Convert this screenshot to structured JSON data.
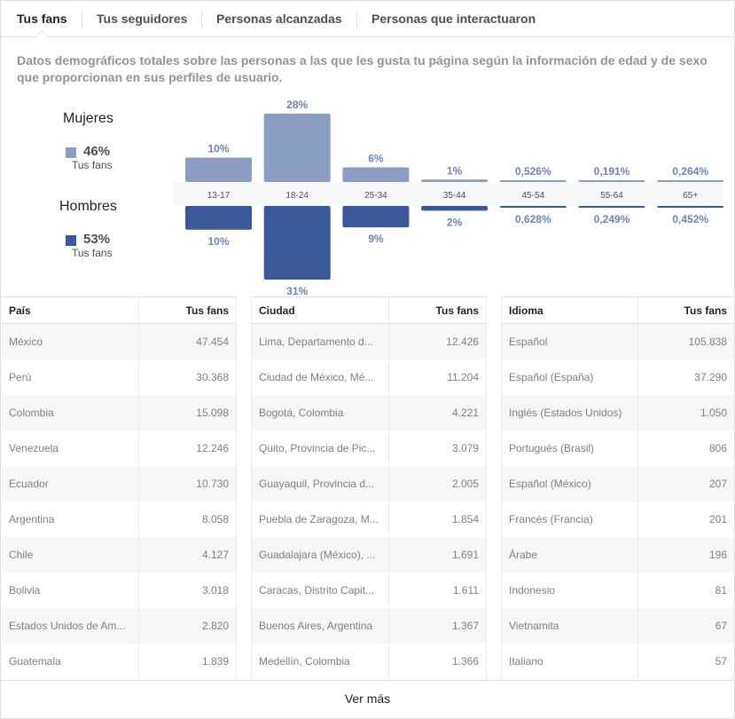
{
  "tabs": [
    {
      "label": "Tus fans",
      "active": true
    },
    {
      "label": "Tus seguidores",
      "active": false
    },
    {
      "label": "Personas alcanzadas",
      "active": false
    },
    {
      "label": "Personas que interactuaron",
      "active": false
    }
  ],
  "description": "Datos demográficos totales sobre las personas a las que les gusta tu página según la información de edad y de sexo que proporcionan en sus perfiles de usuario.",
  "legend": {
    "women": {
      "title": "Mujeres",
      "percent": "46%",
      "sub": "Tus fans",
      "color": "#8b9dc3"
    },
    "men": {
      "title": "Hombres",
      "percent": "53%",
      "sub": "Tus fans",
      "color": "#3b5998"
    }
  },
  "chart_data": {
    "type": "bar",
    "categories": [
      "13-17",
      "18-24",
      "25-34",
      "35-44",
      "45-54",
      "55-64",
      "65+"
    ],
    "series": [
      {
        "name": "Mujeres",
        "values": [
          10,
          28,
          6,
          1,
          0.526,
          0.191,
          0.264
        ],
        "labels": [
          "10%",
          "28%",
          "6%",
          "1%",
          "0,526%",
          "0,191%",
          "0,264%"
        ]
      },
      {
        "name": "Hombres",
        "values": [
          10,
          31,
          9,
          2,
          0.628,
          0.249,
          0.452
        ],
        "labels": [
          "10%",
          "31%",
          "9%",
          "2%",
          "0,628%",
          "0,249%",
          "0,452%"
        ]
      }
    ]
  },
  "tables": {
    "country": {
      "headers": [
        "País",
        "Tus fans"
      ],
      "rows": [
        [
          "México",
          "47.454"
        ],
        [
          "Perú",
          "30.368"
        ],
        [
          "Colombia",
          "15.098"
        ],
        [
          "Venezuela",
          "12.246"
        ],
        [
          "Ecuador",
          "10.730"
        ],
        [
          "Argentina",
          "8.058"
        ],
        [
          "Chile",
          "4.127"
        ],
        [
          "Bolivia",
          "3.018"
        ],
        [
          "Estados Unidos de Am...",
          "2.820"
        ],
        [
          "Guatemala",
          "1.839"
        ]
      ]
    },
    "city": {
      "headers": [
        "Ciudad",
        "Tus fans"
      ],
      "rows": [
        [
          "Lima, Departamento d...",
          "12.426"
        ],
        [
          "Ciudad de México, Mé...",
          "11.204"
        ],
        [
          "Bogotá, Colombia",
          "4.221"
        ],
        [
          "Quito, Provincia de Pic...",
          "3.079"
        ],
        [
          "Guayaquil, Provincia d...",
          "2.005"
        ],
        [
          "Puebla de Zaragoza, M...",
          "1.854"
        ],
        [
          "Guadalajara (México), ...",
          "1.691"
        ],
        [
          "Caracas, Distrito Capit...",
          "1.611"
        ],
        [
          "Buenos Aires, Argentina",
          "1.367"
        ],
        [
          "Medellín, Colombia",
          "1.366"
        ]
      ]
    },
    "language": {
      "headers": [
        "Idioma",
        "Tus fans"
      ],
      "rows": [
        [
          "Español",
          "105.838"
        ],
        [
          "Español (España)",
          "37.290"
        ],
        [
          "Inglés (Estados Unidos)",
          "1.050"
        ],
        [
          "Portugués (Brasil)",
          "806"
        ],
        [
          "Español (México)",
          "207"
        ],
        [
          "Francés (Francia)",
          "201"
        ],
        [
          "Árabe",
          "196"
        ],
        [
          "Indonesio",
          "81"
        ],
        [
          "Vietnamita",
          "67"
        ],
        [
          "Italiano",
          "57"
        ]
      ]
    }
  },
  "more_label": "Ver más"
}
